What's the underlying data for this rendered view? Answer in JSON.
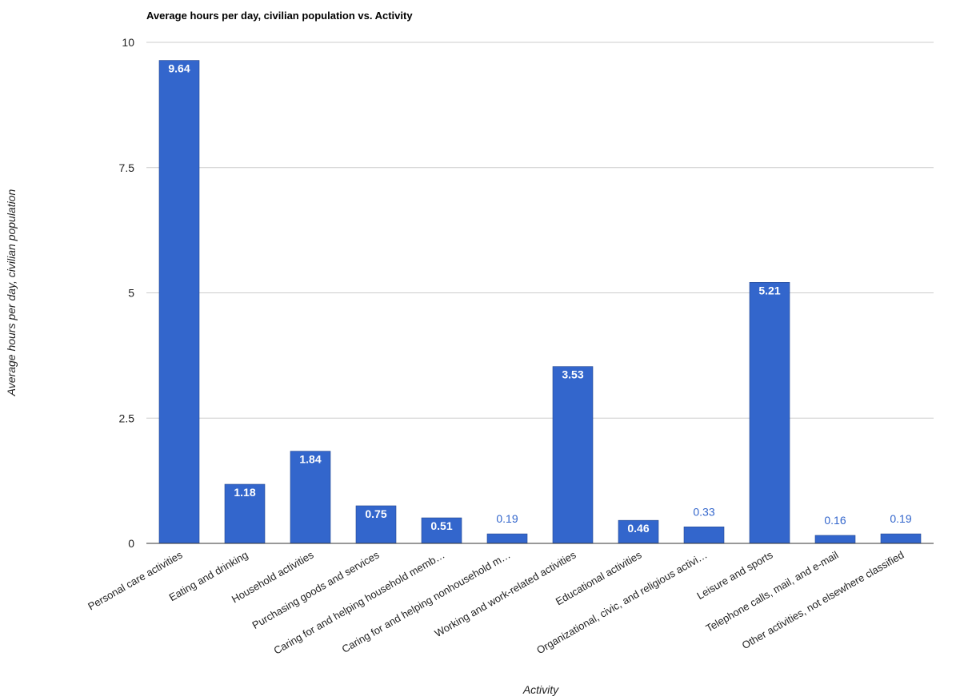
{
  "chart_data": {
    "type": "bar",
    "title": "Average hours per day, civilian population vs. Activity",
    "xlabel": "Activity",
    "ylabel": "Average hours per day, civilian population",
    "ylim": [
      0,
      10
    ],
    "yticks": [
      "0",
      "2.5",
      "5",
      "7.5",
      "10"
    ],
    "grid": true,
    "legend": "none",
    "bar_color": "#3366cc",
    "categories": [
      "Personal care activities",
      "Eating and drinking",
      "Household activities",
      "Purchasing goods and services",
      "Caring for and helping household memb…",
      "Caring for and helping nonhousehold m…",
      "Working and work-related activities",
      "Educational activities",
      "Organizational, civic, and religious activi…",
      "Leisure and sports",
      "Telephone calls, mail, and e-mail",
      "Other activities, not elsewhere classified"
    ],
    "values": [
      9.64,
      1.18,
      1.84,
      0.75,
      0.51,
      0.19,
      3.53,
      0.46,
      0.33,
      5.21,
      0.16,
      0.19
    ],
    "labels": [
      "9.64",
      "1.18",
      "1.84",
      "0.75",
      "0.51",
      "0.19",
      "3.53",
      "0.46",
      "0.33",
      "5.21",
      "0.16",
      "0.19"
    ]
  }
}
